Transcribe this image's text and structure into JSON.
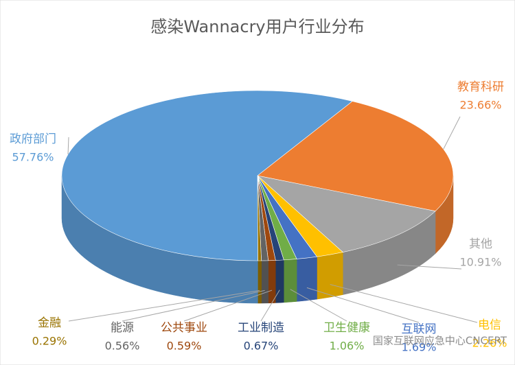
{
  "chart_data": {
    "type": "pie",
    "title": "感染Wannacry用户行业分布",
    "categories": [
      "教育科研",
      "其他",
      "电信",
      "互联网",
      "卫生健康",
      "工业制造",
      "公共事业",
      "能源",
      "金融",
      "政府部门"
    ],
    "values": [
      23.66,
      10.91,
      2.26,
      1.69,
      1.06,
      0.67,
      0.59,
      0.56,
      0.29,
      57.76
    ],
    "value_labels": [
      "23.66%",
      "10.91%",
      "2.26%",
      "1.69%",
      "1.06%",
      "0.67%",
      "0.59%",
      "0.56%",
      "0.29%",
      "57.76%"
    ],
    "colors": [
      "#ed7d31",
      "#a5a5a5",
      "#ffc000",
      "#4472c4",
      "#70ad47",
      "#264478",
      "#9e480e",
      "#636363",
      "#997300",
      "#5b9bd5"
    ]
  },
  "watermark": "国家互联网应急中心CNCERT"
}
